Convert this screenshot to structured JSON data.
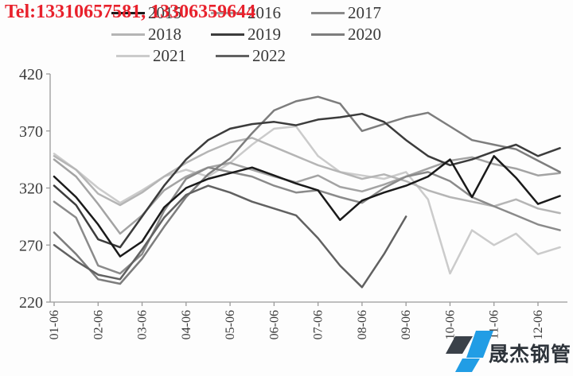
{
  "header": {
    "tel_text": "Tel:13310657581, 13306359644",
    "tel_color": "#e8212c"
  },
  "legend": {
    "items": [
      {
        "label": "2015",
        "color": "#1a1a1a"
      },
      {
        "label": "2016",
        "color": "#a3a3a3"
      },
      {
        "label": "2017",
        "color": "#8a8a8a"
      },
      {
        "label": "2018",
        "color": "#b5b5b5"
      },
      {
        "label": "2019",
        "color": "#3c3c3c"
      },
      {
        "label": "2020",
        "color": "#7d7d7d"
      },
      {
        "label": "2021",
        "color": "#cbcbcb"
      },
      {
        "label": "2022",
        "color": "#616161"
      }
    ]
  },
  "chart_data": {
    "type": "line",
    "title": "",
    "xlabel": "",
    "ylabel": "",
    "ylim": [
      220,
      420
    ],
    "y_ticks": [
      420,
      370,
      320,
      270,
      220
    ],
    "x_tick_labels": [
      "01-06",
      "02-06",
      "03-06",
      "04-06",
      "05-06",
      "06-06",
      "07-06",
      "08-06",
      "09-06",
      "10-06",
      "11-06",
      "12-06"
    ],
    "grid": false,
    "legend_position": "top",
    "axis_color": "#9a9a9a",
    "tick_label_color": "#3a3a3a",
    "series": [
      {
        "name": "2015",
        "color": "#1a1a1a",
        "x": [
          1,
          1.5,
          2,
          2.5,
          3,
          3.5,
          4,
          4.5,
          5,
          5.5,
          6,
          6.5,
          7,
          7.5,
          8,
          8.5,
          9,
          9.5,
          10,
          10.5,
          11,
          11.5,
          12,
          12.5
        ],
        "values": [
          330,
          312,
          288,
          260,
          273,
          303,
          320,
          328,
          333,
          338,
          331,
          324,
          318,
          292,
          309,
          316,
          322,
          330,
          345,
          312,
          348,
          329,
          306,
          313
        ]
      },
      {
        "name": "2016",
        "color": "#a3a3a3",
        "x": [
          1,
          1.5,
          2,
          2.5,
          3,
          3.5,
          4,
          4.5,
          5,
          5.5,
          6,
          6.5,
          7,
          7.5,
          8,
          8.5,
          9,
          9.5,
          10,
          10.5,
          11,
          11.5,
          12,
          12.5
        ],
        "values": [
          345,
          330,
          306,
          280,
          296,
          318,
          330,
          338,
          342,
          336,
          330,
          325,
          331,
          321,
          317,
          323,
          330,
          337,
          344,
          347,
          341,
          337,
          331,
          333
        ]
      },
      {
        "name": "2017",
        "color": "#8a8a8a",
        "x": [
          1,
          1.5,
          2,
          2.5,
          3,
          3.5,
          4,
          4.5,
          5,
          5.5,
          6,
          6.5,
          7,
          7.5,
          8,
          8.5,
          9,
          9.5,
          10,
          10.5,
          11,
          11.5,
          12,
          12.5
        ],
        "values": [
          308,
          294,
          252,
          245,
          262,
          300,
          328,
          338,
          334,
          330,
          322,
          316,
          318,
          312,
          307,
          320,
          330,
          334,
          326,
          312,
          304,
          296,
          288,
          283
        ]
      },
      {
        "name": "2018",
        "color": "#b5b5b5",
        "x": [
          1,
          1.5,
          2,
          2.5,
          3,
          3.5,
          4,
          4.5,
          5,
          5.5,
          6,
          6.5,
          7,
          7.5,
          8,
          8.5,
          9,
          9.5,
          10,
          10.5,
          11,
          11.5,
          12,
          12.5
        ],
        "values": [
          348,
          336,
          315,
          305,
          316,
          330,
          342,
          352,
          360,
          364,
          356,
          348,
          340,
          334,
          328,
          332,
          326,
          318,
          312,
          308,
          304,
          310,
          302,
          298
        ]
      },
      {
        "name": "2019",
        "color": "#3c3c3c",
        "x": [
          1,
          1.5,
          2,
          2.5,
          3,
          3.5,
          4,
          4.5,
          5,
          5.5,
          6,
          6.5,
          7,
          7.5,
          8,
          8.5,
          9,
          9.5,
          10,
          10.5,
          11,
          11.5,
          12,
          12.5
        ],
        "values": [
          322,
          305,
          275,
          268,
          295,
          322,
          345,
          362,
          372,
          376,
          378,
          375,
          380,
          382,
          385,
          378,
          362,
          348,
          340,
          345,
          352,
          358,
          348,
          355
        ]
      },
      {
        "name": "2020",
        "color": "#7d7d7d",
        "x": [
          1,
          1.5,
          2,
          2.5,
          3,
          3.5,
          4,
          4.5,
          5,
          5.5,
          6,
          6.5,
          7,
          7.5,
          8,
          8.5,
          9,
          9.5,
          10,
          10.5,
          11,
          11.5,
          12,
          12.5
        ],
        "values": [
          281,
          262,
          240,
          236,
          258,
          286,
          312,
          332,
          346,
          368,
          388,
          396,
          400,
          394,
          370,
          376,
          382,
          386,
          374,
          362,
          358,
          354,
          344,
          334
        ]
      },
      {
        "name": "2021",
        "color": "#cbcbcb",
        "x": [
          1,
          1.5,
          2,
          2.5,
          3,
          3.5,
          4,
          4.5,
          5,
          5.5,
          6,
          6.5,
          7,
          7.5,
          8,
          8.5,
          9,
          9.5,
          10,
          10.5,
          11,
          11.5,
          12,
          12.5
        ],
        "values": [
          350,
          336,
          320,
          307,
          318,
          330,
          336,
          330,
          342,
          358,
          372,
          374,
          348,
          334,
          331,
          328,
          334,
          310,
          245,
          283,
          270,
          280,
          262,
          268
        ]
      },
      {
        "name": "2022",
        "color": "#616161",
        "x": [
          1,
          1.5,
          2,
          2.5,
          3,
          3.5,
          4,
          4.5,
          5,
          5.5,
          6,
          6.5,
          7,
          7.5,
          8,
          8.5,
          9
        ],
        "values": [
          270,
          256,
          244,
          240,
          266,
          294,
          314,
          322,
          316,
          308,
          302,
          296,
          276,
          252,
          233,
          262,
          295
        ]
      }
    ]
  },
  "watermark": {
    "text": "晟杰钢管",
    "text_color": "#2e343b",
    "dark_shape_color": "#3a4149",
    "blue_shape_color": "#219de5"
  }
}
